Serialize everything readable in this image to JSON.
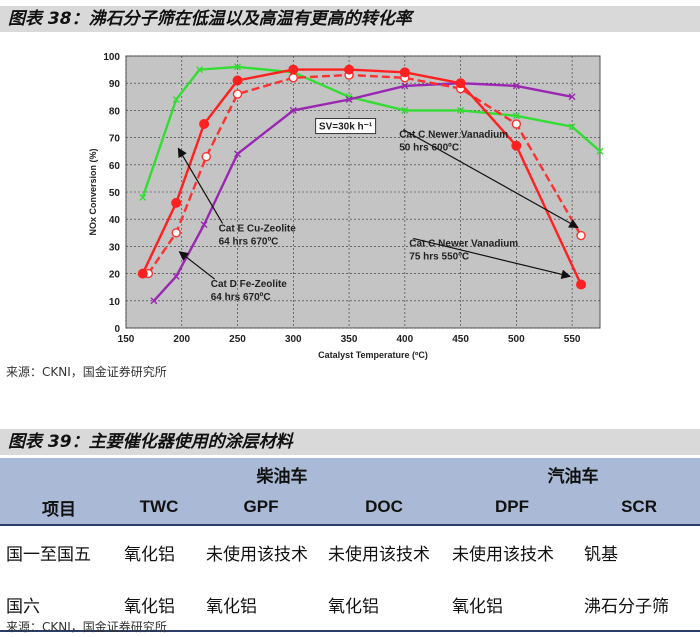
{
  "figure1": {
    "title": "图表 38：沸石分子筛在低温以及高温有更高的转化率",
    "source": "来源：CKNI，国金证券研究所"
  },
  "figure2": {
    "title": "图表 39：主要催化器使用的涂层材料",
    "source": "来源：CKNI，国金证券研究所"
  },
  "chart_data": {
    "type": "line",
    "xlabel": "Catalyst Temperature (ºC)",
    "ylabel": "NOx Conversion (%)",
    "xlim": [
      150,
      575
    ],
    "ylim": [
      0,
      100
    ],
    "xticks": [
      150,
      200,
      250,
      300,
      350,
      400,
      450,
      500,
      550
    ],
    "yticks": [
      0,
      10,
      20,
      30,
      40,
      50,
      60,
      70,
      80,
      90,
      100
    ],
    "annotation_box": "SV=30k h⁻¹",
    "series": [
      {
        "name": "Cat E Cu-Zeolite",
        "label_lines": [
          "Cat E Cu-Zeolite",
          "64 hrs 670ºC"
        ],
        "color": "#33dd33",
        "marker": "x",
        "dash": false,
        "points": [
          [
            165,
            48
          ],
          [
            195,
            84
          ],
          [
            216,
            95
          ],
          [
            250,
            96
          ],
          [
            300,
            94
          ],
          [
            350,
            85
          ],
          [
            400,
            80
          ],
          [
            450,
            80
          ],
          [
            500,
            78
          ],
          [
            550,
            74
          ],
          [
            575,
            65
          ]
        ]
      },
      {
        "name": "Cat D Fe-Zeolite",
        "label_lines": [
          "Cat D Fe-Zeolite",
          "64 hrs 670ºC"
        ],
        "color": "#9a27b2",
        "marker": "x",
        "dash": false,
        "points": [
          [
            175,
            10
          ],
          [
            195,
            19
          ],
          [
            220,
            38
          ],
          [
            250,
            64
          ],
          [
            300,
            80
          ],
          [
            350,
            84
          ],
          [
            400,
            89
          ],
          [
            450,
            90
          ],
          [
            500,
            89
          ],
          [
            550,
            85
          ]
        ]
      },
      {
        "name": "Cat C Newer Vanadium 50 hrs 600ºC",
        "label_lines": [
          "Cat C Newer Vanadium",
          "50 hrs 600ºC"
        ],
        "color": "#ff3030",
        "marker": "circle-open",
        "dash": true,
        "points": [
          [
            170,
            20
          ],
          [
            195,
            35
          ],
          [
            222,
            63
          ],
          [
            250,
            86
          ],
          [
            300,
            92
          ],
          [
            350,
            93
          ],
          [
            400,
            92
          ],
          [
            450,
            88
          ],
          [
            500,
            75
          ],
          [
            558,
            34
          ]
        ]
      },
      {
        "name": "Cat C Newer Vanadium 75 hrs 550ºC",
        "label_lines": [
          "Cat C Newer Vanadium",
          "75 hrs 550ºC"
        ],
        "color": "#ff2020",
        "marker": "circle-filled",
        "dash": false,
        "points": [
          [
            165,
            20
          ],
          [
            195,
            46
          ],
          [
            220,
            75
          ],
          [
            250,
            91
          ],
          [
            300,
            95
          ],
          [
            350,
            95
          ],
          [
            400,
            94
          ],
          [
            450,
            90
          ],
          [
            500,
            67
          ],
          [
            558,
            16
          ]
        ]
      }
    ]
  },
  "table": {
    "group_headers": [
      {
        "label": "柴油车",
        "span": 3
      },
      {
        "label": "汽油车",
        "span": 3
      }
    ],
    "columns": [
      "项目",
      "TWC",
      "GPF",
      "DOC",
      "DPF",
      "SCR"
    ],
    "rows": [
      [
        "国一至国五",
        "氧化铝",
        "未使用该技术",
        "未使用该技术",
        "未使用该技术",
        "钒基"
      ],
      [
        "国六",
        "氧化铝",
        "氧化铝",
        "氧化铝",
        "氧化铝",
        "沸石分子筛"
      ]
    ]
  }
}
